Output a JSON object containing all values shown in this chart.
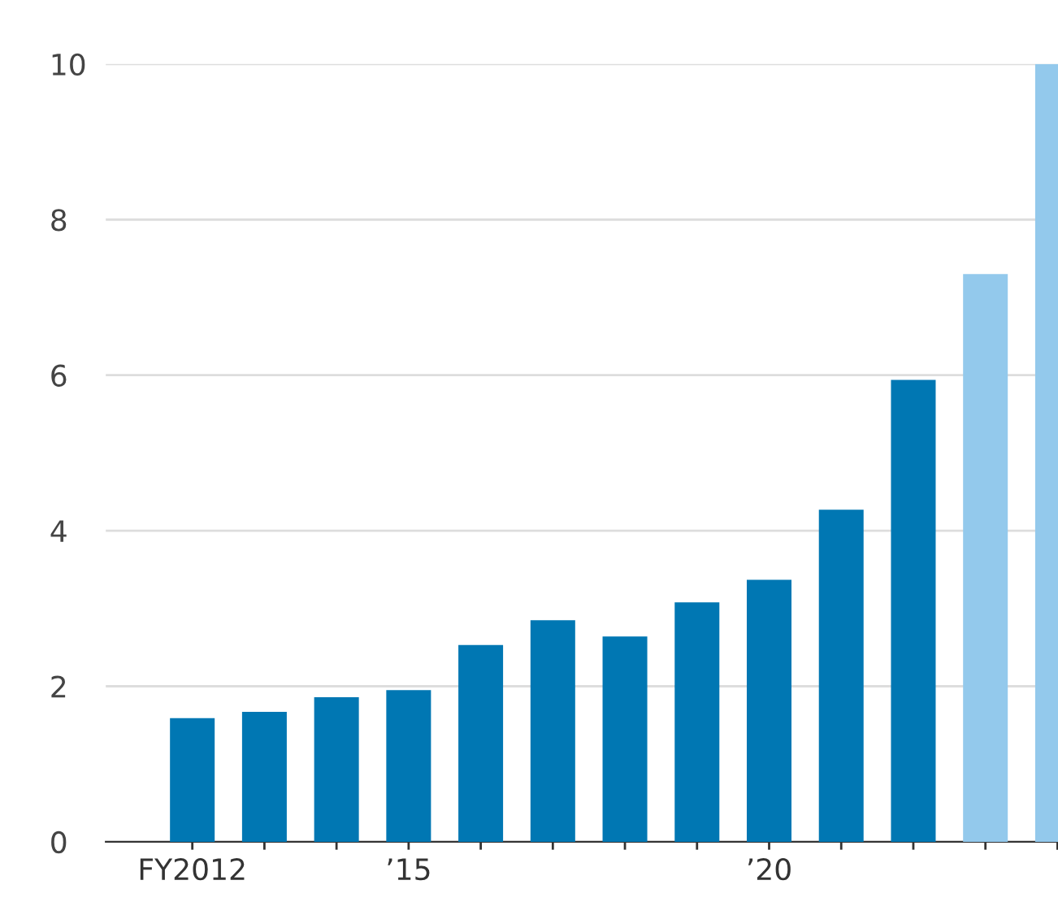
{
  "chart_data": {
    "type": "bar",
    "categories": [
      "FY2012",
      null,
      null,
      "’15",
      null,
      null,
      null,
      null,
      "’20",
      null,
      null,
      null,
      null
    ],
    "values": [
      1.59,
      1.67,
      1.86,
      1.95,
      2.53,
      2.85,
      2.64,
      3.08,
      3.37,
      4.27,
      5.94,
      7.3,
      10
    ],
    "colors": [
      "#0077b3",
      "#0077b3",
      "#0077b3",
      "#0077b3",
      "#0077b3",
      "#0077b3",
      "#0077b3",
      "#0077b3",
      "#0077b3",
      "#0077b3",
      "#0077b3",
      "#93c9ec",
      "#93c9ec"
    ],
    "ylim": [
      0,
      10
    ],
    "yticks": [
      0,
      2,
      4,
      6,
      8,
      10
    ],
    "grid": "y"
  }
}
